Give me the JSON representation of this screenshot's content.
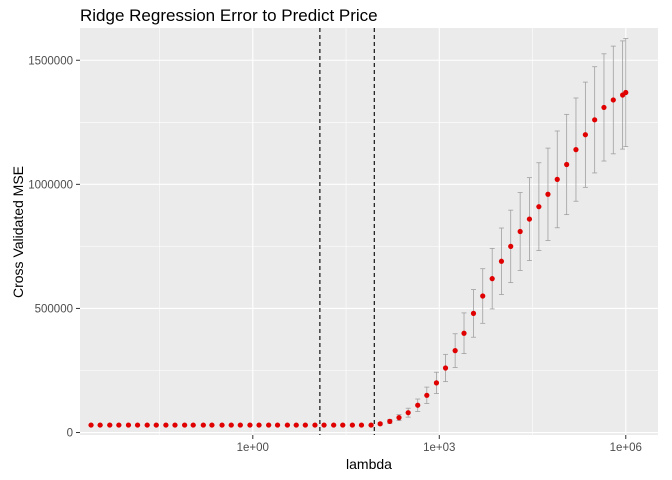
{
  "chart_data": {
    "type": "scatter",
    "title": "Ridge Regression Error to Predict Price",
    "xlabel": "lambda",
    "ylabel": "Cross Validated MSE",
    "x_scale": "log10",
    "xlim": [
      0.00166,
      3300000
    ],
    "ylim": [
      -10000,
      1630000
    ],
    "x_ticks": [
      {
        "value": 1,
        "label": "1e+00"
      },
      {
        "value": 1000,
        "label": "1e+03"
      },
      {
        "value": 1000000,
        "label": "1e+06"
      }
    ],
    "y_ticks": [
      {
        "value": 0,
        "label": "0"
      },
      {
        "value": 500000,
        "label": "500000"
      },
      {
        "value": 1000000,
        "label": "1000000"
      },
      {
        "value": 1500000,
        "label": "1500000"
      }
    ],
    "vlines": [
      {
        "x": 12,
        "style": "dashed",
        "color": "#000000"
      },
      {
        "x": 90,
        "style": "dashed",
        "color": "#000000"
      }
    ],
    "point_color": "#e00000",
    "errorbar_color": "#a0a0a0",
    "panel_background": "#ebebeb",
    "grid_color": "#ffffff",
    "grid": true,
    "legend": "none",
    "series": [
      {
        "x": [
          0.0025,
          0.0035,
          0.005,
          0.007,
          0.01,
          0.014,
          0.02,
          0.028,
          0.04,
          0.056,
          0.08,
          0.11,
          0.16,
          0.22,
          0.32,
          0.45,
          0.63,
          0.9,
          1.26,
          1.8,
          2.5,
          3.6,
          5,
          7,
          10,
          14,
          20,
          28,
          40,
          56,
          80,
          112,
          160,
          225,
          316,
          450,
          630,
          900,
          1260,
          1800,
          2500,
          3550,
          5000,
          7100,
          10000,
          14100,
          20000,
          28200,
          40000,
          56000,
          79000,
          112000,
          158000,
          224000,
          316000,
          446000,
          630000,
          890000,
          1000000
        ],
        "y": [
          30000,
          30000,
          30000,
          30000,
          30000,
          30000,
          30000,
          30000,
          30000,
          30000,
          30000,
          30000,
          30000,
          30000,
          30000,
          30000,
          30000,
          30000,
          30000,
          30000,
          30000,
          30000,
          30000,
          30000,
          30000,
          30000,
          30000,
          30000,
          30000,
          30000,
          30000,
          35000,
          45000,
          60000,
          80000,
          110000,
          150000,
          200000,
          260000,
          330000,
          400000,
          480000,
          550000,
          620000,
          690000,
          750000,
          810000,
          860000,
          910000,
          960000,
          1020000,
          1080000,
          1140000,
          1200000,
          1260000,
          1310000,
          1340000,
          1360000,
          1370000
        ],
        "err": [
          2000,
          2000,
          2000,
          2000,
          2000,
          2000,
          2000,
          2000,
          2000,
          2000,
          2000,
          2000,
          2000,
          2000,
          2000,
          2000,
          2000,
          2000,
          2000,
          2000,
          2000,
          2000,
          2000,
          2000,
          2000,
          2000,
          2000,
          2000,
          2000,
          2000,
          3000,
          5000,
          8000,
          12000,
          18000,
          25000,
          33000,
          43000,
          55000,
          68000,
          82000,
          96000,
          110000,
          122000,
          134000,
          146000,
          157000,
          167000,
          177000,
          186000,
          195000,
          202000,
          208000,
          212000,
          214000,
          216000,
          217000,
          218000,
          218000
        ]
      }
    ]
  }
}
